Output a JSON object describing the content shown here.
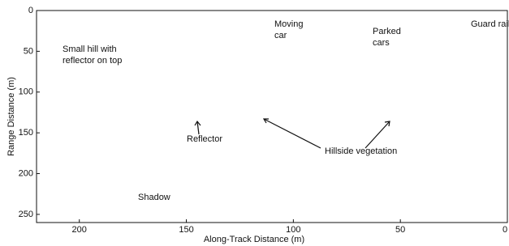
{
  "chart_data": {
    "type": "image",
    "xlabel": "Along-Track Distance (m)",
    "ylabel": "Range Distance (m)",
    "xlim": [
      220,
      0
    ],
    "ylim": [
      0,
      260
    ],
    "xticks": [
      200,
      150,
      100,
      50,
      0
    ],
    "yticks": [
      0,
      50,
      100,
      150,
      200,
      250
    ],
    "annotations": [
      [
        "Moving",
        "car"
      ],
      [
        "Parked",
        "cars"
      ],
      [
        "Guard rail"
      ],
      [
        "Small hill with",
        "reflector on top"
      ],
      [
        "Reflector"
      ],
      [
        "Hillside vegetation"
      ],
      [
        "Shadow"
      ]
    ]
  }
}
